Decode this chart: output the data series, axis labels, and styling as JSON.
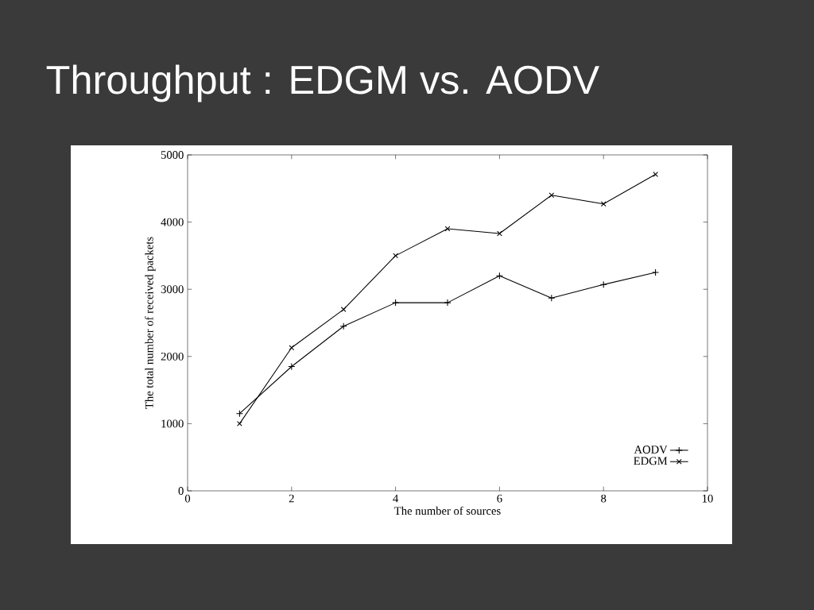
{
  "chart_data": {
    "type": "line",
    "title": "Throughput : EDGM vs. AODV",
    "xlabel": "The number of sources",
    "ylabel": "The total number of received packets",
    "x": [
      1,
      2,
      3,
      4,
      5,
      6,
      7,
      8,
      9
    ],
    "series": [
      {
        "name": "AODV",
        "color": "#000000",
        "marker": "plus",
        "values": [
          1150,
          1850,
          2450,
          2800,
          2800,
          3200,
          2870,
          3070,
          3250
        ]
      },
      {
        "name": "EDGM",
        "color": "#000000",
        "marker": "cross",
        "values": [
          1000,
          2130,
          2700,
          3500,
          3900,
          3830,
          4400,
          4270,
          4710
        ]
      }
    ],
    "xlim": [
      0,
      10
    ],
    "xticks": [
      0,
      2,
      4,
      6,
      8,
      10
    ],
    "ylim": [
      0,
      5000
    ],
    "yticks": [
      0,
      1000,
      2000,
      3000,
      4000,
      5000
    ],
    "legend": "bottom right",
    "grid": false,
    "line_style": "solid"
  }
}
